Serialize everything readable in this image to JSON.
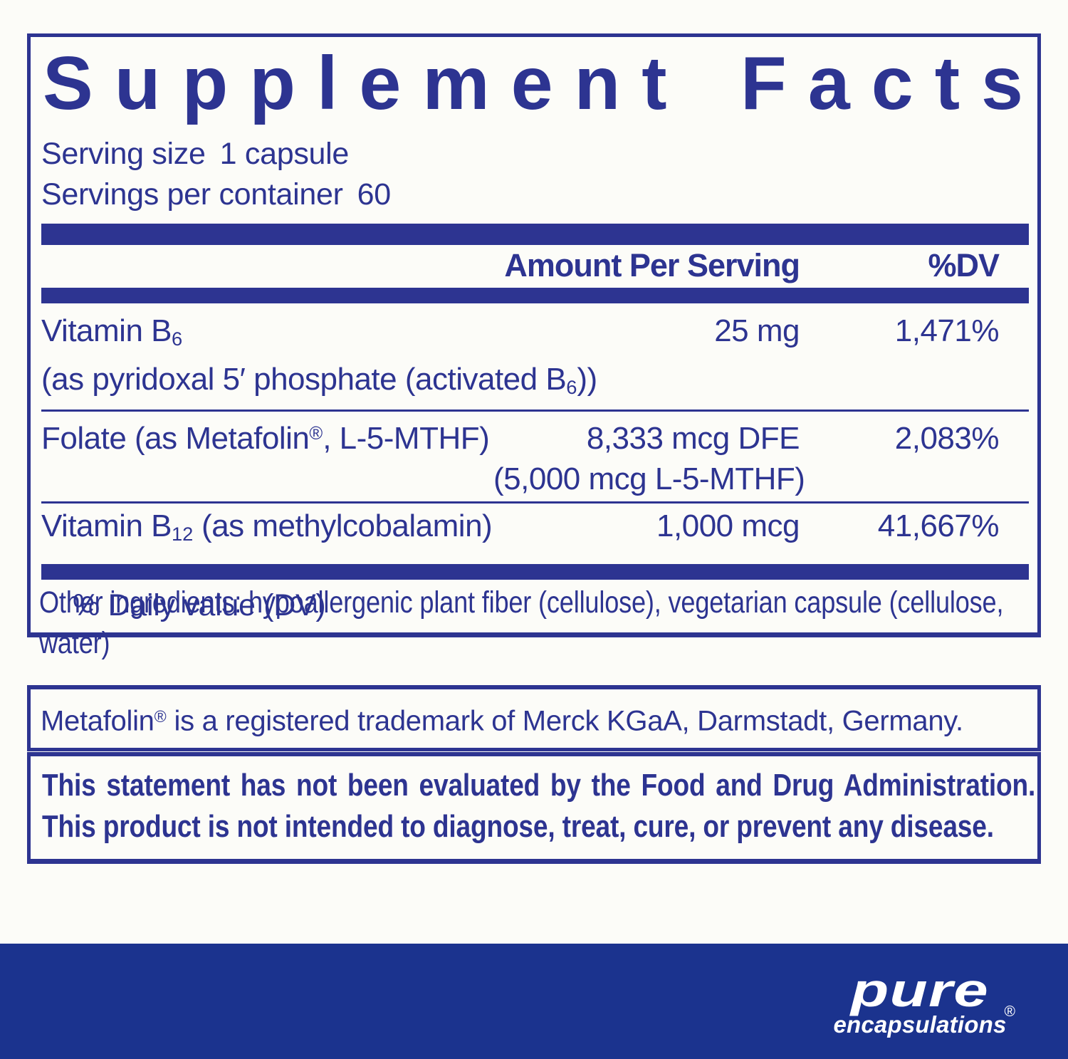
{
  "colors": {
    "navy": "#2d3491",
    "footer_navy": "#1b338e",
    "page_bg": "#fcfcf8",
    "logo_text": "#ffffff"
  },
  "panel": {
    "title": "Supplement Facts",
    "serving_size": {
      "label": "Serving size",
      "value": "1 capsule"
    },
    "servings_per_container": {
      "label": "Servings per container",
      "value": "60"
    },
    "header": {
      "amount": "Amount Per Serving",
      "dv": "%DV"
    },
    "rows": [
      {
        "name": [
          {
            "t": "Vitamin B"
          },
          {
            "t": "6",
            "style": "sub"
          }
        ],
        "detail": [
          {
            "t": "(as pyridoxal 5′ phosphate (activated B"
          },
          {
            "t": "6",
            "style": "sub"
          },
          {
            "t": "))"
          }
        ],
        "amount": "25 mg",
        "amount2": "",
        "dv": "1,471%"
      },
      {
        "name": [
          {
            "t": "Folate (as Metafolin"
          },
          {
            "t": "®",
            "style": "sup"
          },
          {
            "t": ", L-5-MTHF)"
          }
        ],
        "detail": [],
        "amount": "8,333 mcg DFE",
        "amount2": "(5,000 mcg L-5-MTHF)",
        "dv": "2,083%"
      },
      {
        "name": [
          {
            "t": "Vitamin B"
          },
          {
            "t": "12",
            "style": "sub"
          },
          {
            "t": " (as methylcobalamin)"
          }
        ],
        "detail": [],
        "amount": "1,000 mcg",
        "amount2": "",
        "dv": "41,667%"
      }
    ],
    "footnote": "% Daily value (DV)"
  },
  "other_ingredients": "Other ingredients: hypoallergenic plant fiber (cellulose), vegetarian capsule (cellulose, water)",
  "trademark": {
    "pre": "Metafolin",
    "sym": "®",
    "post": " is a registered trademark of Merck KGaA, Darmstadt, Germany."
  },
  "disclaimer": "This statement has not been evaluated by the Food and Drug Administration. This product is not intended to diagnose, treat, cure, or prevent any disease.",
  "logo": {
    "line1": "pure",
    "line2": "encapsulations",
    "reg": "®"
  }
}
